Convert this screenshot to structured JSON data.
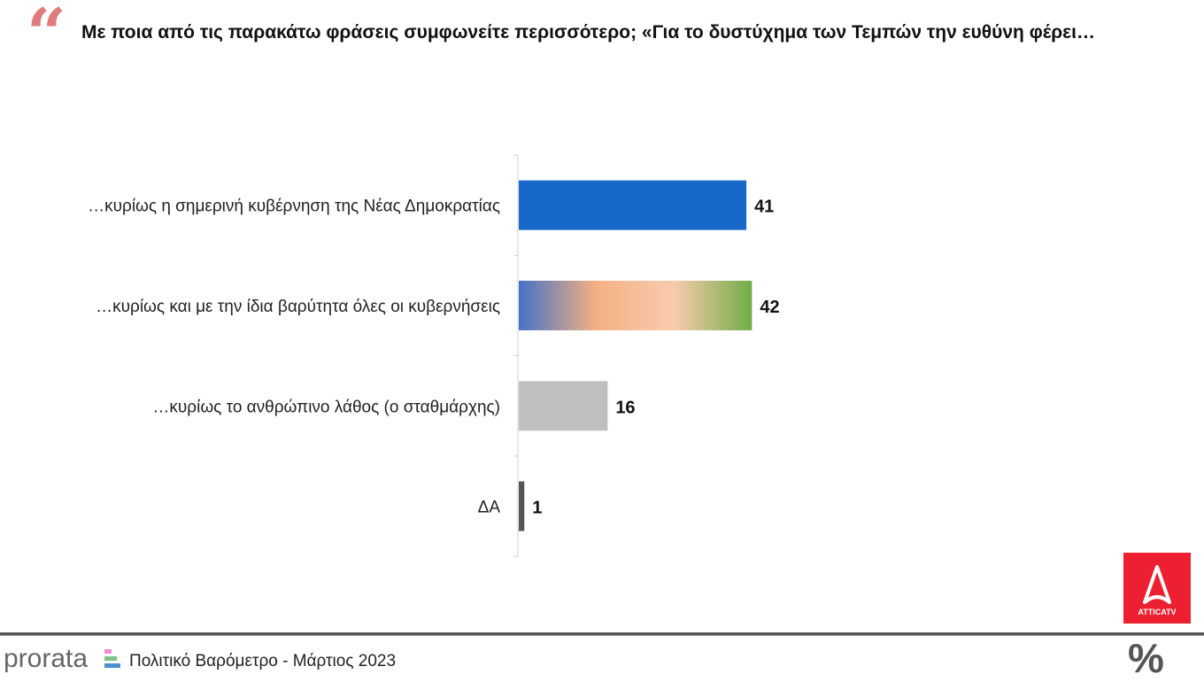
{
  "header": {
    "quote_icon": "quote-mark-icon",
    "title": "Με ποια από τις παρακάτω φράσεις συμφωνείτε περισσότερο;  «Για το δυστύχημα των Τεμπών την ευθύνη φέρει…"
  },
  "chart_data": {
    "type": "bar",
    "orientation": "horizontal",
    "categories": [
      "…κυρίως η σημερινή κυβέρνηση της Νέας Δημοκρατίας",
      "…κυρίως και με την ίδια βαρύτητα όλες οι κυβερνήσεις",
      "…κυρίως το ανθρώπινο λάθος (ο σταθμάρχης)",
      "ΔΑ"
    ],
    "values": [
      41,
      42,
      16,
      1
    ],
    "value_labels": [
      "41",
      "42",
      "16",
      "1"
    ],
    "colors": [
      "#1769c9",
      "gradient",
      "#bfbfbf",
      "#555555"
    ],
    "gradient_colors": [
      "#4472c4",
      "#f4b183",
      "#f8cbad",
      "#70ad47"
    ],
    "grid": false,
    "unit": "%"
  },
  "footer": {
    "brand": "prorata",
    "subtitle": "Πολιτικό Βαρόμετρο - Μάρτιος 2023",
    "logo_text": "ATTICATV",
    "percent_symbol": "%"
  }
}
